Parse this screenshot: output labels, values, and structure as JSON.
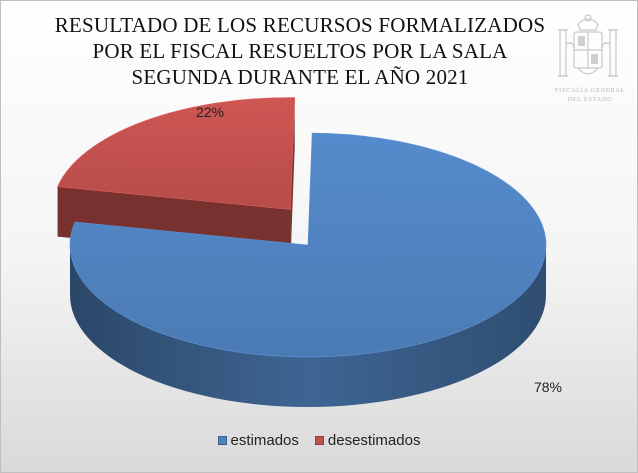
{
  "title_lines": [
    "RESULTADO DE LOS RECURSOS FORMALIZADOS",
    "POR EL FISCAL RESUELTOS POR LA SALA",
    "SEGUNDA DURANTE EL AÑO 2021"
  ],
  "seal": {
    "line1": "FISCALÍA GENERAL",
    "line2": "DEL ESTADO"
  },
  "chart_data": {
    "type": "pie",
    "title": "RESULTADO DE LOS RECURSOS FORMALIZADOS POR EL FISCAL RESUELTOS POR LA SALA SEGUNDA DURANTE EL AÑO 2021",
    "categories": [
      "estimados",
      "desestimados"
    ],
    "values": [
      78,
      22
    ],
    "data_labels": [
      "78%",
      "22%"
    ],
    "colors": [
      "#4f81bd",
      "#c0504d"
    ],
    "exploded": "desestimados",
    "legend": "bottom"
  }
}
